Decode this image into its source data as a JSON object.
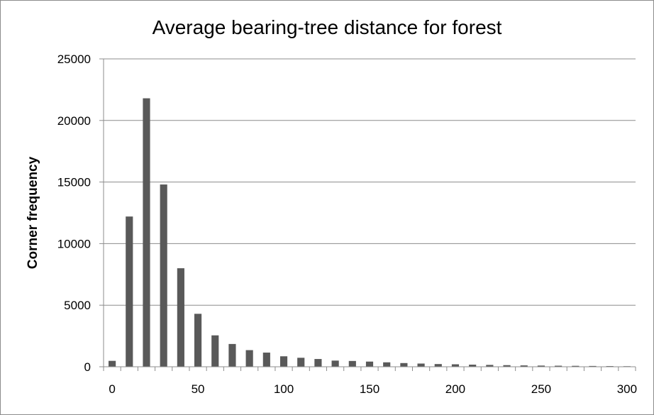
{
  "chart_data": {
    "type": "bar",
    "title": "Average bearing-tree distance for forest",
    "xlabel": "",
    "ylabel": "Corner frequency",
    "xlim": [
      0,
      300
    ],
    "ylim": [
      0,
      25000
    ],
    "x_ticks": [
      0,
      50,
      100,
      150,
      200,
      250,
      300
    ],
    "y_ticks": [
      0,
      5000,
      10000,
      15000,
      20000,
      25000
    ],
    "grid": "horizontal",
    "legend": "none",
    "bar_color": "#595959",
    "x": [
      0,
      10,
      20,
      30,
      40,
      50,
      60,
      70,
      80,
      90,
      100,
      110,
      120,
      130,
      140,
      150,
      160,
      170,
      180,
      190,
      200,
      210,
      220,
      230,
      240,
      250,
      260,
      270,
      280,
      290,
      300
    ],
    "values": [
      480,
      12200,
      21800,
      14800,
      8000,
      4300,
      2550,
      1850,
      1350,
      1150,
      850,
      730,
      630,
      500,
      470,
      420,
      360,
      300,
      260,
      220,
      200,
      170,
      150,
      130,
      110,
      95,
      85,
      75,
      65,
      55,
      45
    ]
  }
}
